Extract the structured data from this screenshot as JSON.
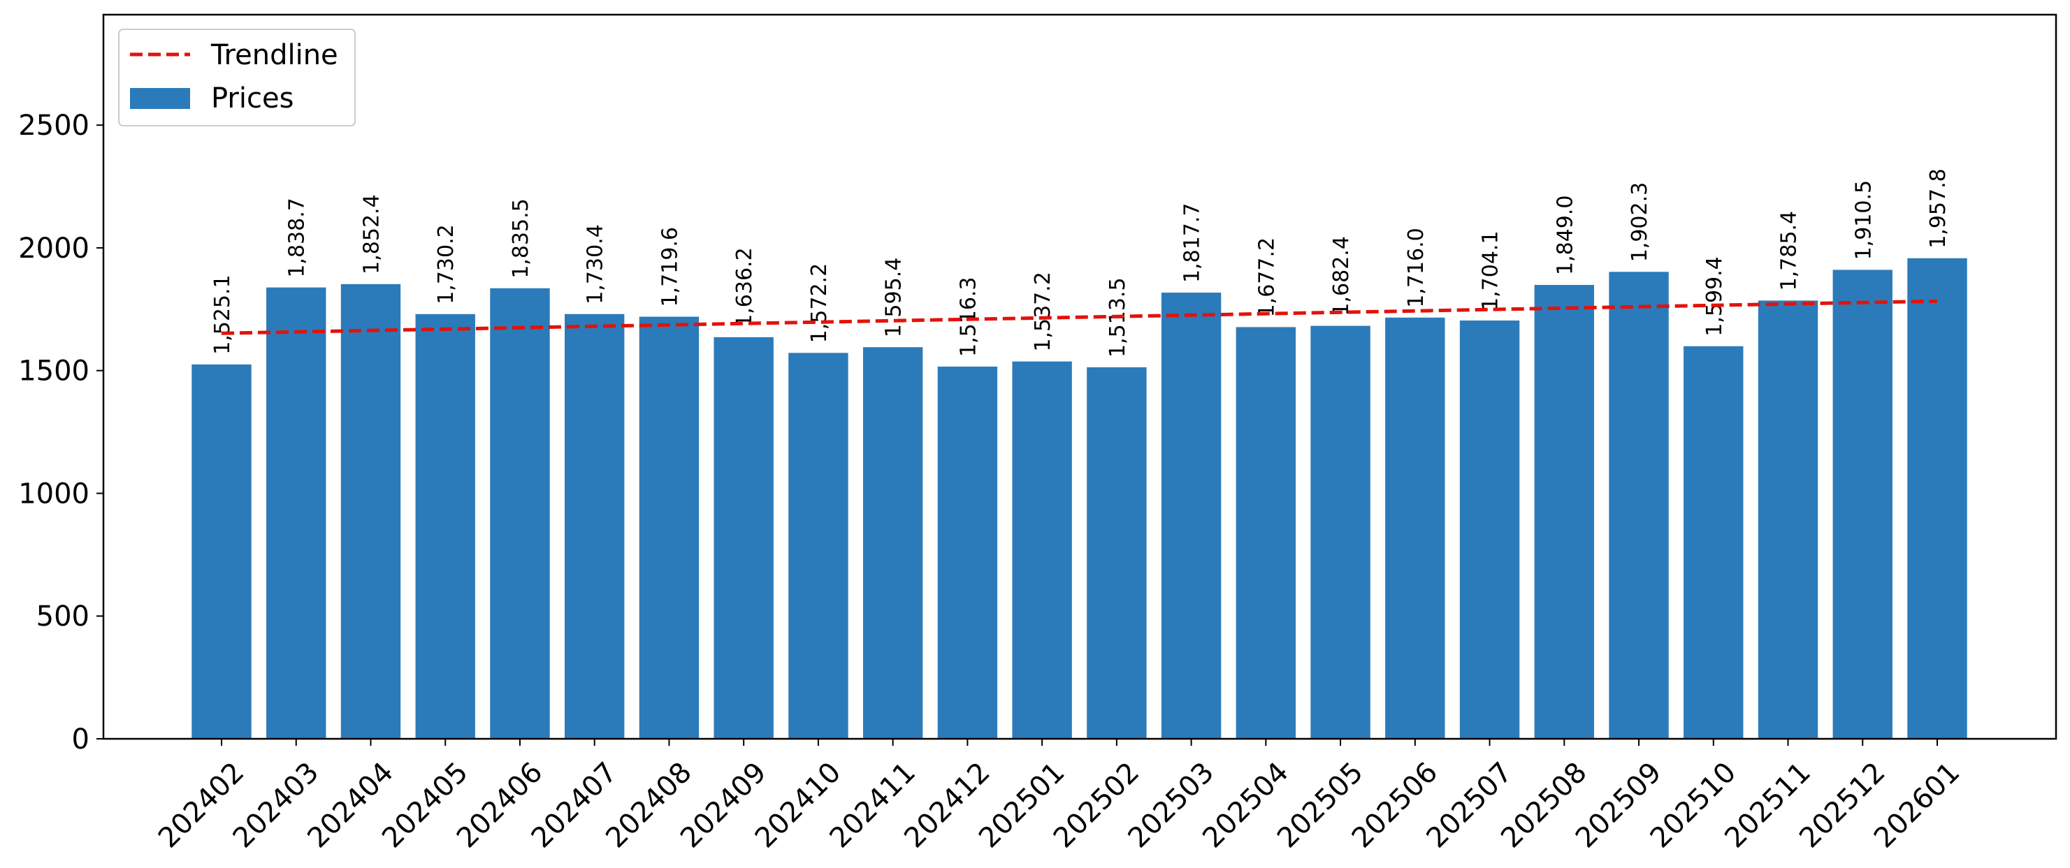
{
  "chart_data": {
    "type": "bar",
    "title": "",
    "xlabel": "",
    "ylabel": "",
    "ylim": [
      0,
      2950
    ],
    "yticks": [
      0,
      500,
      1000,
      1500,
      2000,
      2500
    ],
    "grid": false,
    "legend_position": "upper-left",
    "categories": [
      "202402",
      "202403",
      "202404",
      "202405",
      "202406",
      "202407",
      "202408",
      "202409",
      "202410",
      "202411",
      "202412",
      "202501",
      "202502",
      "202503",
      "202504",
      "202505",
      "202506",
      "202507",
      "202508",
      "202509",
      "202510",
      "202511",
      "202512",
      "202601"
    ],
    "series": [
      {
        "name": "Prices",
        "kind": "bar",
        "color": "#2b7bba",
        "values": [
          1525.1,
          1838.7,
          1852.4,
          1730.2,
          1835.5,
          1730.4,
          1719.6,
          1636.2,
          1572.2,
          1595.4,
          1516.3,
          1537.2,
          1513.5,
          1817.7,
          1677.2,
          1682.4,
          1716.0,
          1704.1,
          1849.0,
          1902.3,
          1599.4,
          1785.4,
          1910.5,
          1957.8
        ],
        "labels": [
          "1,525.1",
          "1,838.7",
          "1,852.4",
          "1,730.2",
          "1,835.5",
          "1,730.4",
          "1,719.6",
          "1,636.2",
          "1,572.2",
          "1,595.4",
          "1,516.3",
          "1,537.2",
          "1,513.5",
          "1,817.7",
          "1,677.2",
          "1,682.4",
          "1,716.0",
          "1,704.1",
          "1,849.0",
          "1,902.3",
          "1,599.4",
          "1,785.4",
          "1,910.5",
          "1,957.8"
        ]
      },
      {
        "name": "Trendline",
        "kind": "line",
        "style": "dashed",
        "color": "#e3120b",
        "start": 1652,
        "end": 1783
      }
    ]
  }
}
